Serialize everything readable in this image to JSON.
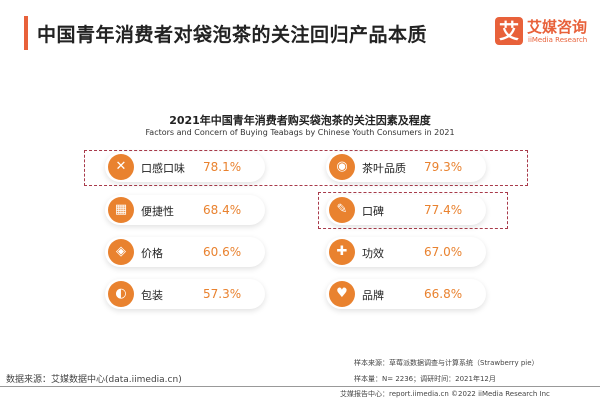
{
  "header": {
    "title": "中国青年消费者对袋泡茶的关注回归产品本质",
    "logo_mark": "艾",
    "logo_cn": "艾媒咨询",
    "logo_en": "iiMedia Research"
  },
  "chart_data": {
    "type": "table",
    "title": "2021年中国青年消费者购买袋泡茶的关注因素及程度",
    "subtitle": "Factors and Concern of Buying Teabags by Chinese Youth Consumers in 2021",
    "items": [
      {
        "label": "口感口味",
        "value": "78.1%",
        "icon": "utensils-icon",
        "highlighted": true
      },
      {
        "label": "茶叶品质",
        "value": "79.3%",
        "icon": "tea-leaf-icon",
        "highlighted": true
      },
      {
        "label": "便捷性",
        "value": "68.4%",
        "icon": "map-icon",
        "highlighted": false
      },
      {
        "label": "口碑",
        "value": "77.4%",
        "icon": "note-pen-icon",
        "highlighted": true
      },
      {
        "label": "价格",
        "value": "60.6%",
        "icon": "price-tag-icon",
        "highlighted": false
      },
      {
        "label": "功效",
        "value": "67.0%",
        "icon": "medical-kit-icon",
        "highlighted": false
      },
      {
        "label": "包装",
        "value": "57.3%",
        "icon": "package-icon",
        "highlighted": false
      },
      {
        "label": "品牌",
        "value": "66.8%",
        "icon": "brand-person-icon",
        "highlighted": false
      }
    ]
  },
  "colors": {
    "accent": "#e8613a",
    "value": "#e9822f",
    "highlight_border": "#a83a4a"
  },
  "footer": {
    "data_source": "数据来源：艾媒数据中心(data.iimedia.cn)",
    "sample_source": "样本来源：草莓派数据调查与计算系统（Strawberry pie）",
    "sample_size": "样本量：N= 2236；调研时间：2021年12月",
    "report": "艾媒报告中心：report.iimedia.cn    ©2022  iiMedia Research  Inc"
  }
}
